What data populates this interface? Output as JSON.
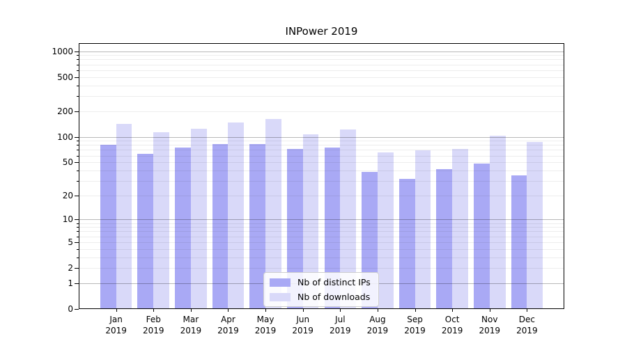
{
  "figure": {
    "background": "#ffffff"
  },
  "chart_data": {
    "type": "bar",
    "title": "INPower 2019",
    "categories": [
      "Jan",
      "Feb",
      "Mar",
      "Apr",
      "May",
      "Jun",
      "Jul",
      "Aug",
      "Sep",
      "Oct",
      "Nov",
      "Dec"
    ],
    "year_label": "2019",
    "series": [
      {
        "name": "Nb of distinct IPs",
        "color": "#a9a9f5",
        "values": [
          79,
          62,
          73,
          80,
          81,
          71,
          73,
          38,
          31,
          41,
          47,
          34
        ]
      },
      {
        "name": "Nb of downloads",
        "color": "#d9d9f9",
        "values": [
          139,
          110,
          121,
          145,
          160,
          105,
          120,
          64,
          68,
          71,
          101,
          85
        ]
      }
    ],
    "xlabel": "",
    "ylabel": "",
    "yscale": "symlog",
    "ylim": [
      0,
      1240
    ],
    "y_ticks": [
      1000,
      500,
      200,
      100,
      50,
      20,
      10,
      5,
      2,
      1,
      0
    ],
    "y_major_gridlines": [
      1,
      10,
      100,
      1000
    ],
    "grid": "horizontal",
    "legend_position": "lower-center",
    "colors": {
      "major_grid": "#b9b9b9",
      "minor_grid": "#ececec",
      "spine": "#000000",
      "text": "#000000"
    }
  }
}
